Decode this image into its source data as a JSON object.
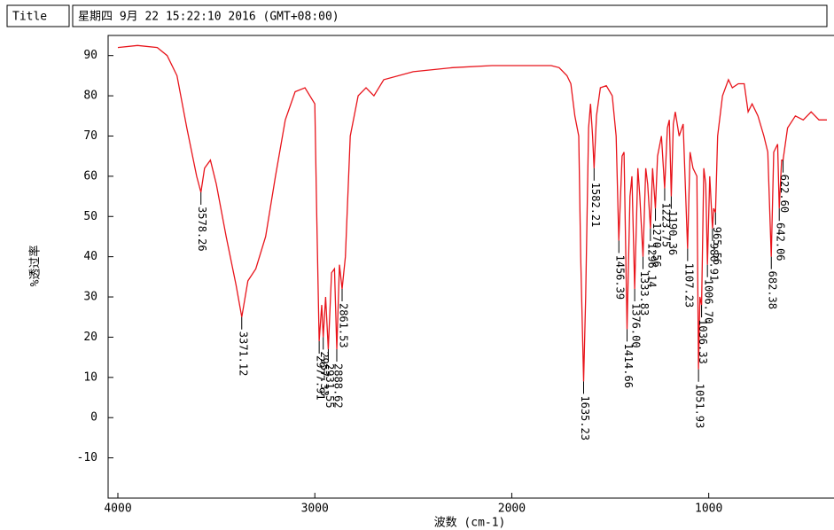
{
  "window_title": "Title",
  "timestamp": "星期四 9月 22 15:22:10 2016 (GMT+08:00)",
  "chart_data": {
    "type": "line",
    "x_label": "波数 (cm-1)",
    "y_label": "%透过率",
    "color": "#e8141b",
    "xlim": [
      4000,
      400
    ],
    "xticks": [
      4000,
      3000,
      2000,
      1000
    ],
    "ylim": [
      -20,
      95
    ],
    "yticks": [
      -10,
      0,
      10,
      20,
      30,
      40,
      50,
      60,
      70,
      80,
      90
    ],
    "x": [
      4000,
      3900,
      3800,
      3750,
      3700,
      3650,
      3600,
      3578.26,
      3560,
      3530,
      3500,
      3450,
      3400,
      3371.12,
      3340,
      3300,
      3250,
      3200,
      3150,
      3100,
      3050,
      3000,
      2990,
      2977.91,
      2965,
      2957.33,
      2945,
      2931.55,
      2915,
      2900,
      2888.62,
      2875,
      2861.53,
      2845,
      2820,
      2780,
      2740,
      2700,
      2650,
      2500,
      2300,
      2100,
      1900,
      1800,
      1760,
      1720,
      1700,
      1680,
      1660,
      1650,
      1635.23,
      1625,
      1610,
      1600,
      1590,
      1582.21,
      1570,
      1550,
      1520,
      1490,
      1470,
      1456.39,
      1440,
      1430,
      1414.66,
      1400,
      1390,
      1376,
      1360,
      1350,
      1333.83,
      1320,
      1310,
      1296.14,
      1285,
      1270.56,
      1260,
      1240,
      1223.75,
      1210,
      1200,
      1190.36,
      1180,
      1170,
      1150,
      1130,
      1107.23,
      1095,
      1080,
      1060,
      1051.93,
      1045,
      1036.33,
      1025,
      1015,
      1006.7,
      995,
      980.91,
      975,
      965.56,
      955,
      930,
      900,
      880,
      850,
      820,
      800,
      780,
      750,
      720,
      700,
      682.38,
      670,
      650,
      642.06,
      630,
      622.6,
      600,
      560,
      520,
      480,
      440,
      400
    ],
    "values": [
      92,
      92.5,
      92,
      90,
      85,
      72,
      60,
      56,
      62,
      64,
      58,
      45,
      33,
      25,
      34,
      37,
      45,
      60,
      74,
      81,
      82,
      78,
      50,
      19,
      28,
      20,
      30,
      17,
      36,
      37,
      17,
      38,
      32,
      40,
      70,
      80,
      82,
      80,
      84,
      86,
      87,
      87.5,
      87.5,
      87.5,
      87,
      85,
      83,
      75,
      70,
      40,
      9,
      30,
      72,
      78,
      70,
      62,
      75,
      82,
      82.5,
      80,
      70,
      44,
      65,
      66,
      22,
      55,
      60,
      32,
      62,
      55,
      40,
      62,
      58,
      47,
      62,
      52,
      65,
      70,
      57,
      72,
      74,
      55,
      73,
      76,
      70,
      73,
      42,
      66,
      62,
      60,
      12,
      30,
      28,
      62,
      58,
      38,
      60,
      47,
      52,
      51,
      70,
      80,
      84,
      82,
      83,
      83,
      76,
      78,
      75,
      70,
      66,
      40,
      66,
      68,
      52,
      64,
      64,
      72,
      75,
      74,
      76,
      74,
      74
    ],
    "peaks": [
      {
        "x": 3578.26,
        "y": 56,
        "label": "3578.26"
      },
      {
        "x": 3371.12,
        "y": 25,
        "label": "3371.12"
      },
      {
        "x": 2977.91,
        "y": 19,
        "label": "2977.91"
      },
      {
        "x": 2957.33,
        "y": 20,
        "label": "2957.33"
      },
      {
        "x": 2931.55,
        "y": 17,
        "label": "2931.55"
      },
      {
        "x": 2888.62,
        "y": 17,
        "label": "2888.62"
      },
      {
        "x": 2861.53,
        "y": 32,
        "label": "2861.53"
      },
      {
        "x": 1635.23,
        "y": 9,
        "label": "1635.23"
      },
      {
        "x": 1582.21,
        "y": 62,
        "label": "1582.21"
      },
      {
        "x": 1456.39,
        "y": 44,
        "label": "1456.39"
      },
      {
        "x": 1414.66,
        "y": 22,
        "label": "1414.66"
      },
      {
        "x": 1376,
        "y": 32,
        "label": "1376.00"
      },
      {
        "x": 1333.83,
        "y": 40,
        "label": "1333.83"
      },
      {
        "x": 1296.14,
        "y": 47,
        "label": "1296.14"
      },
      {
        "x": 1270.56,
        "y": 52,
        "label": "1270.56"
      },
      {
        "x": 1223.75,
        "y": 57,
        "label": "1223.75"
      },
      {
        "x": 1190.36,
        "y": 55,
        "label": "1190.36"
      },
      {
        "x": 1107.23,
        "y": 42,
        "label": "1107.23"
      },
      {
        "x": 1051.93,
        "y": 12,
        "label": "1051.93"
      },
      {
        "x": 1036.33,
        "y": 28,
        "label": "1036.33"
      },
      {
        "x": 1006.7,
        "y": 38,
        "label": "1006.70"
      },
      {
        "x": 980.91,
        "y": 47,
        "label": "980.91"
      },
      {
        "x": 965.56,
        "y": 51,
        "label": "965.56"
      },
      {
        "x": 682.38,
        "y": 40,
        "label": "682.38"
      },
      {
        "x": 642.06,
        "y": 52,
        "label": "642.06"
      },
      {
        "x": 622.6,
        "y": 64,
        "label": "622.60"
      }
    ]
  }
}
